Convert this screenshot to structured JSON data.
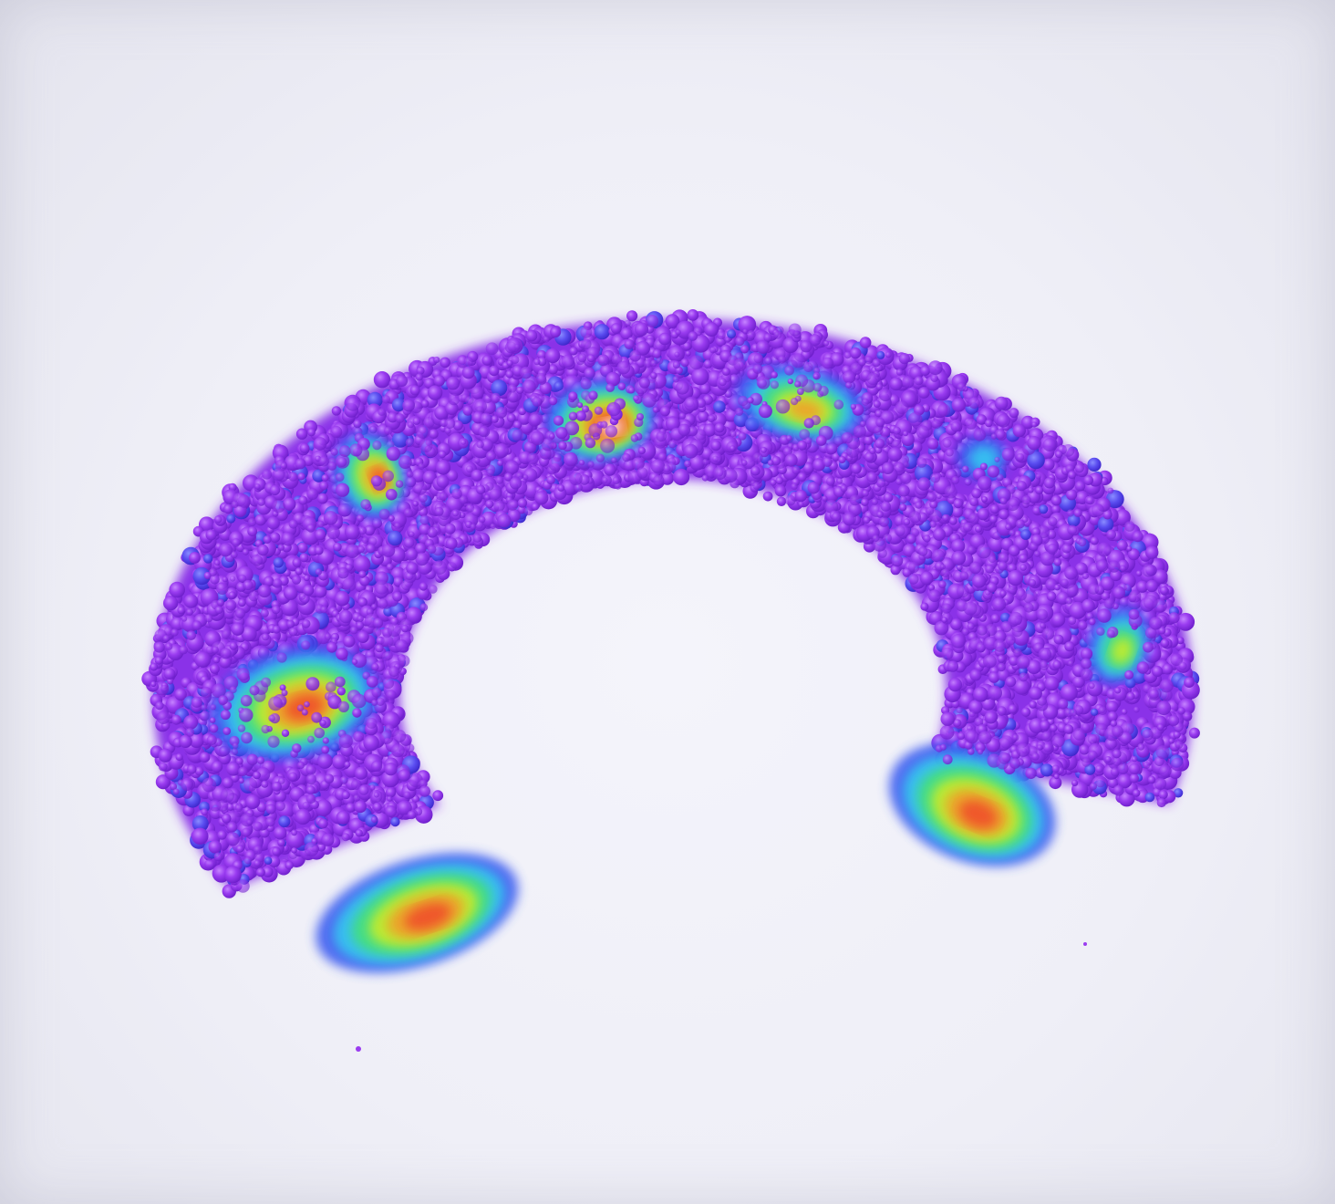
{
  "scene": {
    "description_visible_text": "",
    "colors": {
      "background": "#efeff7",
      "particle_base": "#9a3cf0",
      "particle_shade": "#7a22d8",
      "particle_light": "#b566ff",
      "ramp": [
        "#7a2cf0",
        "#3c5cf0",
        "#34c8f0",
        "#44e07a",
        "#c8ec2c",
        "#f0a02c",
        "#f0502c",
        "#ffffff"
      ]
    },
    "hotspots": [
      {
        "intensity": 0.85
      },
      {
        "intensity": 1.0
      },
      {
        "intensity": 0.75
      },
      {
        "intensity": 0.35
      },
      {
        "intensity": 0.5
      },
      {
        "intensity": 0.8
      },
      {
        "intensity": 0.85
      },
      {
        "intensity": 0.9
      }
    ]
  }
}
